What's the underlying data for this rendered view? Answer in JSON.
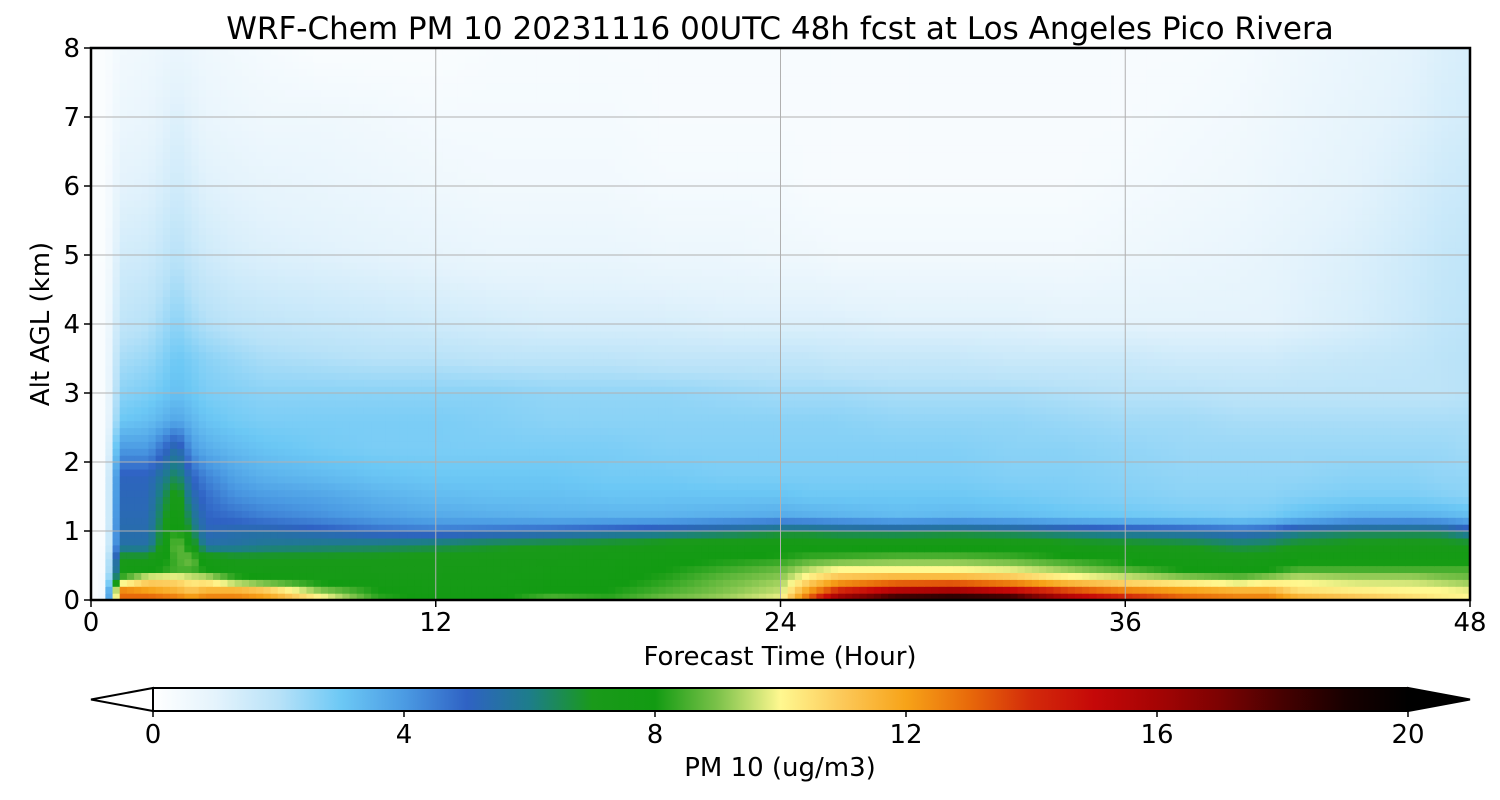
{
  "chart_data": {
    "type": "heatmap",
    "title": "WRF-Chem PM 10  20231116 00UTC 48h fcst at Los Angeles Pico Rivera",
    "xlabel": "Forecast Time (Hour)",
    "ylabel": "Alt AGL (km)",
    "xlim": [
      0,
      48
    ],
    "ylim": [
      0,
      8
    ],
    "x_ticks": [
      "0",
      "12",
      "24",
      "36",
      "48"
    ],
    "x_tick_values": [
      0,
      12,
      24,
      36,
      48
    ],
    "y_ticks": [
      "0",
      "1",
      "2",
      "3",
      "4",
      "5",
      "6",
      "7",
      "8"
    ],
    "y_tick_values": [
      0,
      1,
      2,
      3,
      4,
      5,
      6,
      7,
      8
    ],
    "grid": true,
    "colorbar": {
      "label": "PM 10  (ug/m3)",
      "ticks": [
        "0",
        "4",
        "8",
        "12",
        "16",
        "20"
      ],
      "tick_values": [
        0,
        4,
        8,
        12,
        16,
        20
      ],
      "range": [
        0,
        20
      ],
      "extend": "both",
      "colors": {
        "0": "#ffffff",
        "1": "#e4f3fc",
        "2": "#b8e2f8",
        "3": "#6cc8f5",
        "4": "#4b9be3",
        "5": "#2f62c4",
        "6": "#1d7d8a",
        "7": "#1a9a1a",
        "8": "#129b12",
        "9": "#7cc24a",
        "10": "#fff890",
        "11": "#fcc858",
        "12": "#f7a318",
        "13": "#e86a0a",
        "14": "#d32a0a",
        "15": "#c50808",
        "16": "#a50404",
        "17": "#7c0202",
        "18": "#460101",
        "19": "#180000",
        "20": "#000000"
      }
    },
    "x": [
      0,
      0.5,
      1,
      2,
      3,
      3.5,
      4,
      5,
      6,
      8,
      10,
      12,
      14,
      16,
      18,
      20,
      22,
      24,
      25,
      26,
      28,
      30,
      32,
      34,
      36,
      38,
      40,
      41,
      42,
      44,
      46,
      47,
      48
    ],
    "y": [
      0,
      0.05,
      0.15,
      0.3,
      0.45,
      0.6,
      0.8,
      1.0,
      1.2,
      1.5,
      1.8,
      2.2,
      2.6,
      3.0,
      3.5,
      4.0,
      5.0,
      6.0,
      7.0,
      8.0
    ],
    "z": [
      [
        0.2,
        0.6,
        14.5,
        14.5,
        14.0,
        13.0,
        13.5,
        13.5,
        13.0,
        11.0,
        8.5,
        8.0,
        8.0,
        9.0,
        8.5,
        9.0,
        9.5,
        10.0,
        14.0,
        17.5,
        19.5,
        20.0,
        19.5,
        17.0,
        15.5,
        14.0,
        13.5,
        13.5,
        12.0,
        11.5,
        11.0,
        10.5,
        10.0
      ],
      [
        0.2,
        0.6,
        13.0,
        13.0,
        12.5,
        12.0,
        12.5,
        12.5,
        12.0,
        10.0,
        8.2,
        7.8,
        7.8,
        8.5,
        8.2,
        8.8,
        9.2,
        9.8,
        13.0,
        16.0,
        18.0,
        18.5,
        18.0,
        15.5,
        14.0,
        13.0,
        12.5,
        12.5,
        11.5,
        11.0,
        10.5,
        10.2,
        10.0
      ],
      [
        0.2,
        0.5,
        12.5,
        12.0,
        11.5,
        11.0,
        11.5,
        11.5,
        11.0,
        9.0,
        8.0,
        7.6,
        7.6,
        8.0,
        8.0,
        8.5,
        9.0,
        9.5,
        12.0,
        14.0,
        15.5,
        16.0,
        15.0,
        13.5,
        12.5,
        12.0,
        11.5,
        11.5,
        10.5,
        10.2,
        10.0,
        10.0,
        9.8
      ],
      [
        0.2,
        0.5,
        8.5,
        10.5,
        10.5,
        10.0,
        10.0,
        8.5,
        8.0,
        7.6,
        7.5,
        7.5,
        7.5,
        7.8,
        7.8,
        8.2,
        8.8,
        9.2,
        10.5,
        11.5,
        12.0,
        12.0,
        11.5,
        10.5,
        10.0,
        9.5,
        9.0,
        9.5,
        9.8,
        9.5,
        9.5,
        9.2,
        9.0
      ],
      [
        0.2,
        0.4,
        7.5,
        7.8,
        8.5,
        8.5,
        8.0,
        7.5,
        7.5,
        7.4,
        7.3,
        7.3,
        7.4,
        7.6,
        7.8,
        8.0,
        8.4,
        8.8,
        9.5,
        10.0,
        10.0,
        10.0,
        9.8,
        9.2,
        8.6,
        8.0,
        7.8,
        8.0,
        8.5,
        8.5,
        8.5,
        8.5,
        8.5
      ],
      [
        0.2,
        0.4,
        7.2,
        7.2,
        8.5,
        9.0,
        7.5,
        7.2,
        7.2,
        7.2,
        7.2,
        7.2,
        7.3,
        7.4,
        7.6,
        7.8,
        8.0,
        8.2,
        8.5,
        8.6,
        8.8,
        8.8,
        8.6,
        8.2,
        7.8,
        7.5,
        7.3,
        7.5,
        7.8,
        7.8,
        7.8,
        7.8,
        7.8
      ],
      [
        0.2,
        0.3,
        5.5,
        5.5,
        9.0,
        7.5,
        5.5,
        5.6,
        5.8,
        6.0,
        6.2,
        6.5,
        6.8,
        7.0,
        7.2,
        7.4,
        7.5,
        7.6,
        7.6,
        7.5,
        7.6,
        7.6,
        7.5,
        7.3,
        7.2,
        7.0,
        6.5,
        6.6,
        7.0,
        7.2,
        7.2,
        7.2,
        7.2
      ],
      [
        0.2,
        0.3,
        5.4,
        5.4,
        8.5,
        6.5,
        5.2,
        5.4,
        5.5,
        5.2,
        4.8,
        4.6,
        4.8,
        5.0,
        5.3,
        5.6,
        6.0,
        6.5,
        6.5,
        6.3,
        6.2,
        6.4,
        6.2,
        5.8,
        5.5,
        5.3,
        5.0,
        5.2,
        5.8,
        6.2,
        6.3,
        6.2,
        5.5
      ],
      [
        0.2,
        0.3,
        5.3,
        5.3,
        8.0,
        6.0,
        5.0,
        4.8,
        4.5,
        4.2,
        3.9,
        3.7,
        3.6,
        3.5,
        3.5,
        3.5,
        3.6,
        3.7,
        3.6,
        3.5,
        3.3,
        3.4,
        3.3,
        3.1,
        3.0,
        2.9,
        2.8,
        2.9,
        3.2,
        3.6,
        3.6,
        3.5,
        3.3
      ],
      [
        0.2,
        0.3,
        5.2,
        5.2,
        7.5,
        5.5,
        4.8,
        4.2,
        4.0,
        3.8,
        3.5,
        3.3,
        3.2,
        3.2,
        3.1,
        3.1,
        3.1,
        3.1,
        3.0,
        3.0,
        3.0,
        3.0,
        2.9,
        2.8,
        2.7,
        2.6,
        2.6,
        2.6,
        2.7,
        2.8,
        2.8,
        2.7,
        2.6
      ],
      [
        0.2,
        0.3,
        5.1,
        5.1,
        6.5,
        5.0,
        4.4,
        3.8,
        3.5,
        3.3,
        3.1,
        3.0,
        3.0,
        3.0,
        2.9,
        2.9,
        2.8,
        2.8,
        2.8,
        2.8,
        2.8,
        2.8,
        2.7,
        2.7,
        2.6,
        2.5,
        2.5,
        2.5,
        2.5,
        2.6,
        2.6,
        2.5,
        2.5
      ],
      [
        0.2,
        0.3,
        4.0,
        4.0,
        5.6,
        4.0,
        3.6,
        3.3,
        3.1,
        2.9,
        2.8,
        2.8,
        2.8,
        2.8,
        2.8,
        2.7,
        2.7,
        2.7,
        2.7,
        2.7,
        2.7,
        2.7,
        2.6,
        2.6,
        2.5,
        2.4,
        2.4,
        2.4,
        2.4,
        2.4,
        2.4,
        2.4,
        2.3
      ],
      [
        0.2,
        0.3,
        3.0,
        3.2,
        3.8,
        3.4,
        3.1,
        2.9,
        2.8,
        2.8,
        2.8,
        2.8,
        2.7,
        2.6,
        2.6,
        2.6,
        2.6,
        2.6,
        2.6,
        2.6,
        2.5,
        2.5,
        2.5,
        2.4,
        2.3,
        2.3,
        2.2,
        2.2,
        2.2,
        2.2,
        2.2,
        2.2,
        2.2
      ],
      [
        0.2,
        0.3,
        2.6,
        2.8,
        3.2,
        3.0,
        2.8,
        2.7,
        2.6,
        2.6,
        2.6,
        2.6,
        2.6,
        2.5,
        2.5,
        2.5,
        2.4,
        2.3,
        2.3,
        2.3,
        2.2,
        2.2,
        2.2,
        2.1,
        2.0,
        2.0,
        1.9,
        1.9,
        1.9,
        1.9,
        1.9,
        1.9,
        2.0
      ],
      [
        0.2,
        0.3,
        2.2,
        2.4,
        3.0,
        2.8,
        2.6,
        2.4,
        2.2,
        2.1,
        2.0,
        2.0,
        1.9,
        1.9,
        1.9,
        1.8,
        1.8,
        1.8,
        1.8,
        1.7,
        1.7,
        1.7,
        1.6,
        1.6,
        1.6,
        1.5,
        1.5,
        1.5,
        1.6,
        1.7,
        1.8,
        1.9,
        2.0
      ],
      [
        0.2,
        0.3,
        1.8,
        2.0,
        2.6,
        2.3,
        2.1,
        1.9,
        1.8,
        1.7,
        1.6,
        1.5,
        1.4,
        1.3,
        1.3,
        1.3,
        1.2,
        1.2,
        1.2,
        1.2,
        1.1,
        1.1,
        1.1,
        1.0,
        1.0,
        1.0,
        1.0,
        1.0,
        1.1,
        1.3,
        1.6,
        1.8,
        1.9
      ],
      [
        0.2,
        0.2,
        1.4,
        1.5,
        2.0,
        1.7,
        1.5,
        1.3,
        1.2,
        1.1,
        1.0,
        0.9,
        0.8,
        0.8,
        0.8,
        0.7,
        0.7,
        0.6,
        0.6,
        0.5,
        0.5,
        0.5,
        0.5,
        0.5,
        0.6,
        0.7,
        0.8,
        0.9,
        1.0,
        1.2,
        1.5,
        1.7,
        1.8
      ],
      [
        0.2,
        0.2,
        1.0,
        1.1,
        1.5,
        1.3,
        1.1,
        1.0,
        0.9,
        0.8,
        0.7,
        0.6,
        0.5,
        0.5,
        0.5,
        0.4,
        0.4,
        0.4,
        0.3,
        0.3,
        0.3,
        0.3,
        0.3,
        0.3,
        0.4,
        0.5,
        0.6,
        0.7,
        0.8,
        1.0,
        1.3,
        1.5,
        1.6
      ],
      [
        0.2,
        0.2,
        0.7,
        0.8,
        1.2,
        1.0,
        0.8,
        0.7,
        0.6,
        0.6,
        0.5,
        0.4,
        0.4,
        0.4,
        0.4,
        0.3,
        0.3,
        0.3,
        0.3,
        0.3,
        0.3,
        0.3,
        0.3,
        0.3,
        0.3,
        0.4,
        0.5,
        0.6,
        0.7,
        0.9,
        1.1,
        1.3,
        1.4
      ],
      [
        0.2,
        0.2,
        0.5,
        0.6,
        0.8,
        0.7,
        0.6,
        0.5,
        0.4,
        0.2,
        0.2,
        0.2,
        0.3,
        0.3,
        0.3,
        0.3,
        0.3,
        0.3,
        0.3,
        0.3,
        0.3,
        0.3,
        0.3,
        0.3,
        0.3,
        0.3,
        0.4,
        0.5,
        0.6,
        0.8,
        1.0,
        1.2,
        1.3
      ]
    ]
  }
}
